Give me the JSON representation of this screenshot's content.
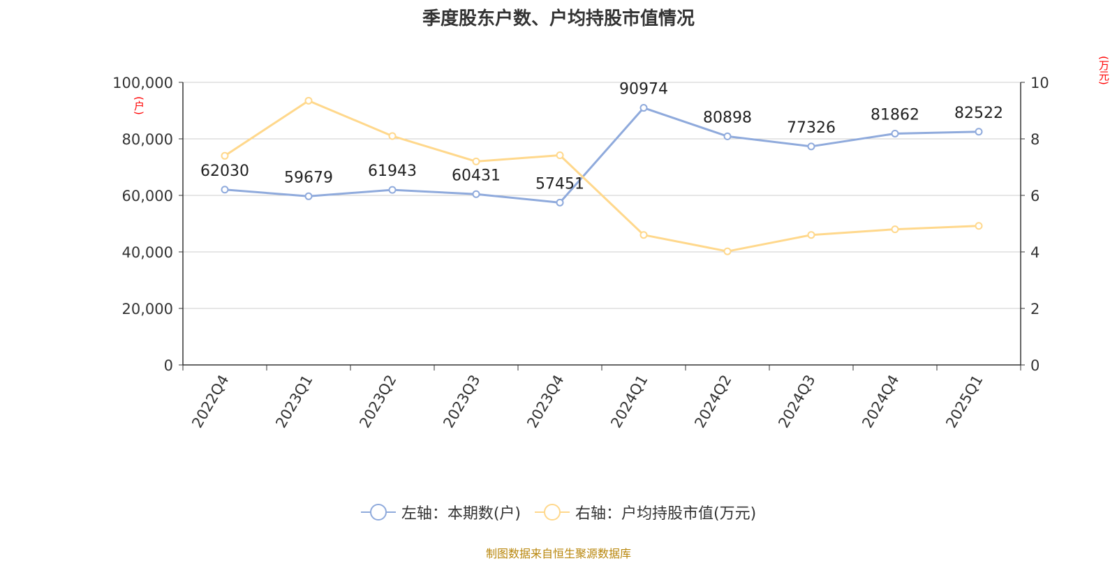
{
  "title": "季度股东户数、户均持股市值情况",
  "source_note": "制图数据来自恒生聚源数据库",
  "colors": {
    "left_series": "#8faadc",
    "right_series": "#ffd88c",
    "unit": "#ff0000",
    "source": "#b8860b"
  },
  "chart_data": {
    "type": "line",
    "title": "季度股东户数、户均持股市值情况",
    "categories": [
      "2022Q4",
      "2023Q1",
      "2023Q2",
      "2023Q3",
      "2023Q4",
      "2024Q1",
      "2024Q2",
      "2024Q3",
      "2024Q4",
      "2025Q1"
    ],
    "left_axis": {
      "unit": "(户)",
      "ylim": [
        0,
        100000
      ],
      "ticks": [
        "0",
        "20,000",
        "40,000",
        "60,000",
        "80,000",
        "100,000"
      ]
    },
    "right_axis": {
      "unit": "(万元)",
      "ylim": [
        0,
        10
      ],
      "ticks": [
        "0",
        "2",
        "4",
        "6",
        "8",
        "10"
      ]
    },
    "series": [
      {
        "name": "左轴：本期数(户)",
        "axis": "left",
        "color": "#8faadc",
        "values": [
          62030,
          59679,
          61943,
          60431,
          57451,
          90974,
          80898,
          77326,
          81862,
          82522
        ],
        "labels": [
          "62030",
          "59679",
          "61943",
          "60431",
          "57451",
          "90974",
          "80898",
          "77326",
          "81862",
          "82522"
        ]
      },
      {
        "name": "右轴：户均持股市值(万元)",
        "axis": "right",
        "color": "#ffd88c",
        "values": [
          7.4,
          9.35,
          8.1,
          7.2,
          7.42,
          4.6,
          4.02,
          4.6,
          4.8,
          4.92
        ]
      }
    ],
    "grid": true,
    "legend": "bottom"
  }
}
